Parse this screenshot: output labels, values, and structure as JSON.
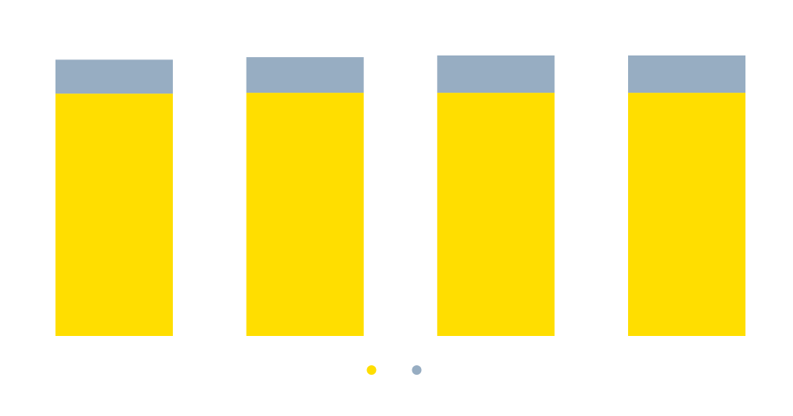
{
  "chart_data": {
    "type": "stacked-bar",
    "categories": [
      null,
      null,
      null,
      null
    ],
    "series": [
      {
        "color": "#ffde00",
        "values": [
          86.4,
          86.7,
          86.7,
          86.7
        ]
      },
      {
        "color": "#97adc2",
        "values": [
          12.1,
          12.7,
          13.3,
          13.3
        ]
      }
    ],
    "ylim": [
      0,
      100
    ]
  }
}
